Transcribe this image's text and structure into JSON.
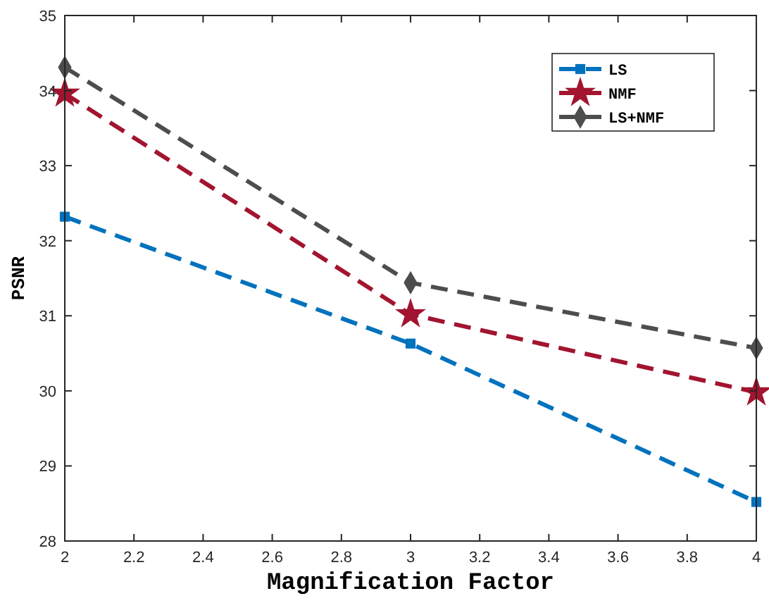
{
  "chart_data": {
    "type": "line",
    "xlabel": "Magnification Factor",
    "ylabel": "PSNR",
    "x": [
      2,
      3,
      4
    ],
    "xlim": [
      2,
      4
    ],
    "xticks": [
      2,
      2.2,
      2.4,
      2.6,
      2.8,
      3,
      3.2,
      3.4,
      3.6,
      3.8,
      4
    ],
    "ylim": [
      28,
      35
    ],
    "yticks": [
      28,
      29,
      30,
      31,
      32,
      33,
      34,
      35
    ],
    "grid": false,
    "legend": "top right",
    "line_style": "dashed",
    "series": [
      {
        "name": "LS",
        "color": "#0072bd",
        "marker": "square",
        "values": [
          32.32,
          30.63,
          28.52
        ]
      },
      {
        "name": "NMF",
        "color": "#a2142f",
        "marker": "star",
        "values": [
          33.96,
          31.02,
          29.98
        ]
      },
      {
        "name": "LS+NMF",
        "color": "#4d4d4d",
        "marker": "diamond",
        "values": [
          34.31,
          31.44,
          30.57
        ]
      }
    ]
  }
}
